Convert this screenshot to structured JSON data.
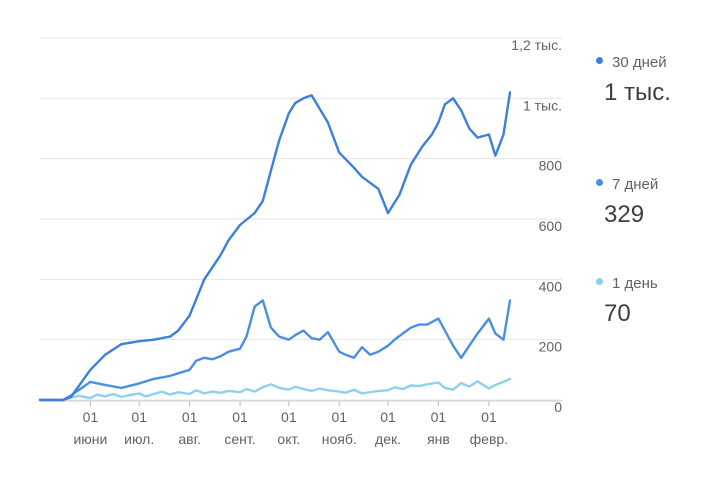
{
  "chart_data": {
    "type": "line",
    "title": "",
    "xlabel": "",
    "ylabel": "",
    "ylim": [
      0,
      1200
    ],
    "y_ticks": [
      {
        "value": 0,
        "label": "0"
      },
      {
        "value": 200,
        "label": "200"
      },
      {
        "value": 400,
        "label": "400"
      },
      {
        "value": 600,
        "label": "600"
      },
      {
        "value": 800,
        "label": "800"
      },
      {
        "value": 1000,
        "label": "1 тыс."
      },
      {
        "value": 1200,
        "label": "1,2 тыс."
      }
    ],
    "x_ticks": [
      {
        "date": "2019-06-01",
        "day": "01",
        "month": "июни"
      },
      {
        "date": "2019-07-01",
        "day": "01",
        "month": "июл."
      },
      {
        "date": "2019-08-01",
        "day": "01",
        "month": "авг."
      },
      {
        "date": "2019-09-01",
        "day": "01",
        "month": "сент."
      },
      {
        "date": "2019-10-01",
        "day": "01",
        "month": "окт."
      },
      {
        "date": "2019-11-01",
        "day": "01",
        "month": "нояб."
      },
      {
        "date": "2019-12-01",
        "day": "01",
        "month": "дек."
      },
      {
        "date": "2020-01-01",
        "day": "01",
        "month": "янв"
      },
      {
        "date": "2020-02-01",
        "day": "01",
        "month": "февр."
      }
    ],
    "x_range": [
      "2019-05-01",
      "2020-02-14"
    ],
    "grid": true,
    "legend_position": "right",
    "series": [
      {
        "name": "30 дней",
        "legend_value": "1 тыс.",
        "color": "#3d7fdc",
        "x": [
          "2019-05-01",
          "2019-05-10",
          "2019-05-15",
          "2019-05-20",
          "2019-06-01",
          "2019-06-10",
          "2019-06-20",
          "2019-07-01",
          "2019-07-10",
          "2019-07-20",
          "2019-07-25",
          "2019-08-01",
          "2019-08-10",
          "2019-08-15",
          "2019-08-20",
          "2019-08-25",
          "2019-09-01",
          "2019-09-10",
          "2019-09-15",
          "2019-09-20",
          "2019-09-25",
          "2019-10-01",
          "2019-10-05",
          "2019-10-10",
          "2019-10-15",
          "2019-10-25",
          "2019-11-01",
          "2019-11-10",
          "2019-11-15",
          "2019-11-20",
          "2019-11-25",
          "2019-12-01",
          "2019-12-08",
          "2019-12-15",
          "2019-12-22",
          "2019-12-28",
          "2020-01-01",
          "2020-01-05",
          "2020-01-10",
          "2020-01-15",
          "2020-01-20",
          "2020-01-25",
          "2020-02-01",
          "2020-02-05",
          "2020-02-10",
          "2020-02-14"
        ],
        "y": [
          0,
          0,
          0,
          10,
          100,
          150,
          185,
          195,
          200,
          210,
          230,
          280,
          400,
          440,
          480,
          530,
          580,
          620,
          660,
          760,
          860,
          950,
          985,
          1000,
          1010,
          920,
          820,
          770,
          740,
          720,
          700,
          620,
          680,
          780,
          840,
          880,
          920,
          980,
          1000,
          960,
          900,
          870,
          880,
          810,
          880,
          1020
        ]
      },
      {
        "name": "7 дней",
        "legend_value": "329",
        "color": "#4a90e2",
        "x": [
          "2019-05-01",
          "2019-05-10",
          "2019-05-15",
          "2019-05-20",
          "2019-06-01",
          "2019-06-10",
          "2019-06-20",
          "2019-07-01",
          "2019-07-10",
          "2019-07-20",
          "2019-08-01",
          "2019-08-05",
          "2019-08-10",
          "2019-08-15",
          "2019-08-20",
          "2019-08-25",
          "2019-09-01",
          "2019-09-05",
          "2019-09-10",
          "2019-09-15",
          "2019-09-20",
          "2019-09-25",
          "2019-10-01",
          "2019-10-05",
          "2019-10-10",
          "2019-10-15",
          "2019-10-20",
          "2019-10-25",
          "2019-11-01",
          "2019-11-05",
          "2019-11-10",
          "2019-11-15",
          "2019-11-20",
          "2019-11-25",
          "2019-12-01",
          "2019-12-05",
          "2019-12-10",
          "2019-12-15",
          "2019-12-20",
          "2019-12-25",
          "2020-01-01",
          "2020-01-05",
          "2020-01-10",
          "2020-01-15",
          "2020-01-20",
          "2020-01-25",
          "2020-02-01",
          "2020-02-05",
          "2020-02-10",
          "2020-02-14"
        ],
        "y": [
          0,
          0,
          0,
          15,
          60,
          50,
          40,
          55,
          70,
          80,
          100,
          130,
          140,
          135,
          145,
          160,
          170,
          210,
          310,
          330,
          240,
          210,
          200,
          215,
          230,
          205,
          200,
          225,
          160,
          150,
          140,
          175,
          150,
          160,
          180,
          200,
          220,
          240,
          250,
          250,
          270,
          230,
          180,
          140,
          180,
          220,
          270,
          220,
          200,
          330
        ]
      },
      {
        "name": "1 день",
        "legend_value": "70",
        "color": "#8fd0ec",
        "x": [
          "2019-05-01",
          "2019-05-10",
          "2019-05-15",
          "2019-05-20",
          "2019-05-25",
          "2019-06-01",
          "2019-06-05",
          "2019-06-10",
          "2019-06-15",
          "2019-06-20",
          "2019-06-25",
          "2019-07-01",
          "2019-07-05",
          "2019-07-10",
          "2019-07-15",
          "2019-07-20",
          "2019-07-25",
          "2019-08-01",
          "2019-08-05",
          "2019-08-10",
          "2019-08-15",
          "2019-08-20",
          "2019-08-25",
          "2019-09-01",
          "2019-09-05",
          "2019-09-10",
          "2019-09-15",
          "2019-09-20",
          "2019-09-25",
          "2019-10-01",
          "2019-10-05",
          "2019-10-10",
          "2019-10-15",
          "2019-10-20",
          "2019-10-25",
          "2019-11-01",
          "2019-11-05",
          "2019-11-10",
          "2019-11-15",
          "2019-11-20",
          "2019-11-25",
          "2019-12-01",
          "2019-12-05",
          "2019-12-10",
          "2019-12-15",
          "2019-12-20",
          "2019-12-25",
          "2020-01-01",
          "2020-01-05",
          "2020-01-10",
          "2020-01-15",
          "2020-01-20",
          "2020-01-25",
          "2020-02-01",
          "2020-02-05",
          "2020-02-10",
          "2020-02-14"
        ],
        "y": [
          0,
          0,
          0,
          8,
          14,
          6,
          18,
          12,
          20,
          10,
          16,
          22,
          12,
          20,
          28,
          18,
          26,
          20,
          32,
          22,
          28,
          24,
          30,
          26,
          36,
          28,
          42,
          52,
          40,
          34,
          44,
          36,
          30,
          38,
          32,
          28,
          24,
          34,
          22,
          26,
          30,
          32,
          42,
          36,
          48,
          46,
          52,
          58,
          40,
          34,
          56,
          44,
          62,
          38,
          50,
          60,
          70
        ]
      }
    ]
  },
  "legend": [
    {
      "name": "30 дней",
      "value": "1 тыс.",
      "color": "#3d7fdc"
    },
    {
      "name": "7 дней",
      "value": "329",
      "color": "#4a90e2"
    },
    {
      "name": "1 день",
      "value": "70",
      "color": "#8fd0ec"
    }
  ]
}
